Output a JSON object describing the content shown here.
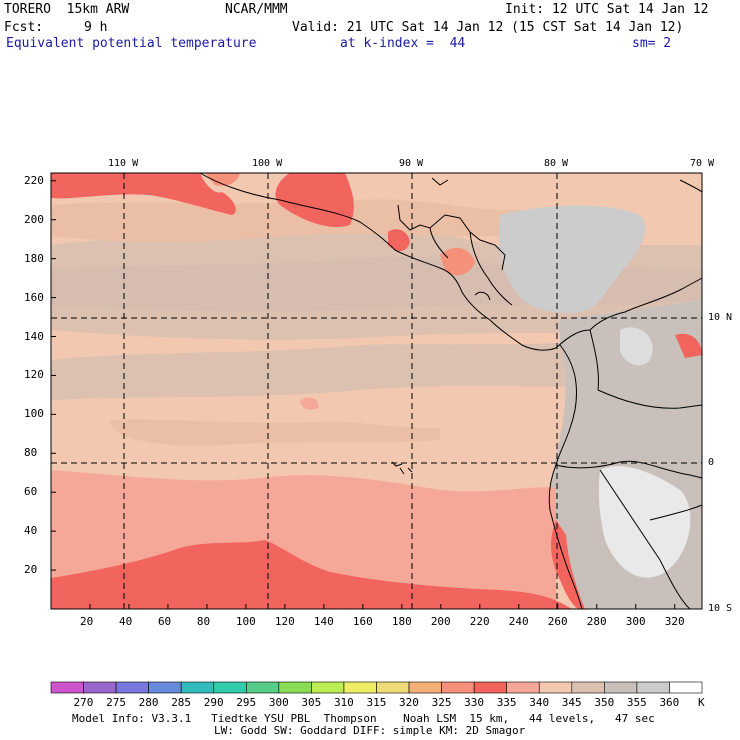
{
  "header": {
    "model": "TORERO  15km ARW",
    "org": "NCAR/MMM",
    "init": "Init: 12 UTC Sat 14 Jan 12",
    "fcst_label": "Fcst:",
    "fcst_value": "9 h",
    "valid": "Valid: 21 UTC Sat 14 Jan 12 (15 CST Sat 14 Jan 12)",
    "field": "Equivalent potential temperature",
    "level": "at k-index =  44",
    "smooth": "sm= 2"
  },
  "axes": {
    "top_lon": [
      "110 W",
      "100 W",
      "90 W",
      "80 W",
      "70 W"
    ],
    "right_lat": [
      "10 N",
      "0",
      "10 S"
    ],
    "left_y": [
      "220",
      "200",
      "180",
      "160",
      "140",
      "120",
      "100",
      "80",
      "60",
      "40",
      "20"
    ],
    "bottom_x": [
      "20",
      "40",
      "60",
      "80",
      "100",
      "120",
      "140",
      "160",
      "180",
      "200",
      "220",
      "240",
      "260",
      "280",
      "300",
      "320"
    ]
  },
  "colorbar": {
    "labels": [
      "270",
      "275",
      "280",
      "285",
      "290",
      "295",
      "300",
      "305",
      "310",
      "315",
      "320",
      "325",
      "330",
      "335",
      "340",
      "345",
      "350",
      "355",
      "360"
    ],
    "unit": "K",
    "colors": [
      "#cc55cc",
      "#9966cc",
      "#7777dd",
      "#6688dd",
      "#33bbbb",
      "#33ccaa",
      "#55cc88",
      "#88dd55",
      "#bbee55",
      "#eeee66",
      "#eedd77",
      "#f5b078",
      "#f5907a",
      "#f2645e",
      "#f5a898",
      "#f2c8b0",
      "#dcc0b0",
      "#c9c0bc",
      "#cccccc",
      "#ffffff"
    ]
  },
  "footer": {
    "line1": "Model Info: V3.3.1   Tiedtke YSU PBL  Thompson    Noah LSM  15 km,   44 levels,   47 sec",
    "line2": "LW: Godd SW: Goddard DIFF: simple KM: 2D Smagor"
  }
}
